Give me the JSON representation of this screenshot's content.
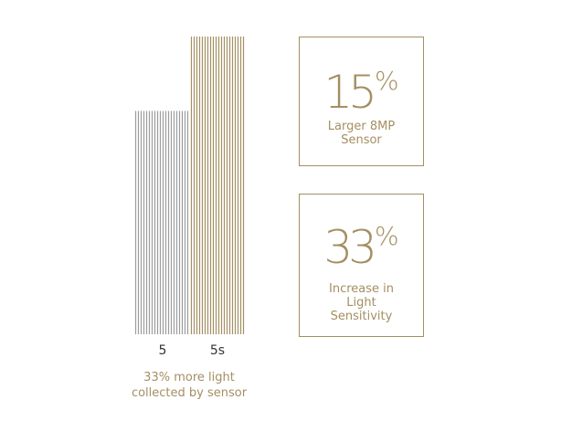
{
  "chart_data": {
    "type": "bar",
    "categories": [
      "5",
      "5s"
    ],
    "values": [
      75,
      100
    ],
    "ylim": [
      0,
      100
    ],
    "colors": [
      "#9c9c9c",
      "#a48f62"
    ],
    "caption_lines": [
      "33% more light",
      "collected by sensor"
    ]
  },
  "stats": [
    {
      "value": "15",
      "unit": "%",
      "label_lines": [
        "Larger 8MP",
        "Sensor"
      ]
    },
    {
      "value": "33",
      "unit": "%",
      "label_lines": [
        "Increase in",
        "Light",
        "Sensitivity"
      ]
    }
  ],
  "colors": {
    "accent": "#a48f62",
    "gray": "#9c9c9c",
    "text": "#333333"
  }
}
